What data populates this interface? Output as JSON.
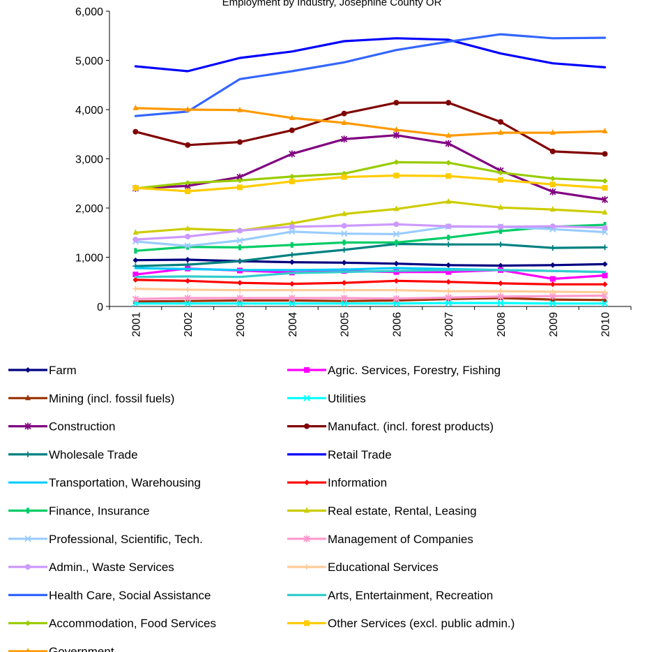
{
  "chart_data": {
    "type": "line",
    "title": "Employment by Industry, Josephine County OR",
    "xlabel": "",
    "ylabel": "",
    "ylim": [
      0,
      6000
    ],
    "y_ticks": [
      0,
      1000,
      2000,
      3000,
      4000,
      5000,
      6000
    ],
    "y_tick_labels": [
      "0",
      "1,000",
      "2,000",
      "3,000",
      "4,000",
      "5,000",
      "6,000"
    ],
    "grid": false,
    "legend_position": "bottom",
    "categories": [
      "2001",
      "2002",
      "2003",
      "2004",
      "2005",
      "2006",
      "2007",
      "2008",
      "2009",
      "2010"
    ],
    "series": [
      {
        "name": "Farm",
        "color": "#000080",
        "marker": "diamond",
        "values": [
          940,
          950,
          920,
          900,
          890,
          870,
          840,
          830,
          840,
          860
        ]
      },
      {
        "name": "Agric. Services, Forestry, Fishing",
        "color": "#FF00FF",
        "marker": "square",
        "values": [
          650,
          770,
          730,
          690,
          720,
          700,
          700,
          740,
          560,
          630
        ]
      },
      {
        "name": "Mining (incl. fossil fuels)",
        "color": "#993300",
        "marker": "triangle",
        "values": [
          100,
          110,
          120,
          120,
          110,
          120,
          150,
          170,
          140,
          130
        ]
      },
      {
        "name": "Utilities",
        "color": "#00FFFF",
        "marker": "x",
        "values": [
          60,
          60,
          60,
          60,
          60,
          60,
          70,
          70,
          60,
          60
        ]
      },
      {
        "name": "Construction",
        "color": "#800080",
        "marker": "star",
        "values": [
          2400,
          2450,
          2630,
          3100,
          3400,
          3480,
          3310,
          2760,
          2330,
          2170
        ]
      },
      {
        "name": "Manufact. (incl. forest products)",
        "color": "#800000",
        "marker": "circle",
        "values": [
          3550,
          3280,
          3340,
          3580,
          3920,
          4140,
          4140,
          3750,
          3150,
          3100
        ]
      },
      {
        "name": "Wholesale Trade",
        "color": "#008080",
        "marker": "plus",
        "values": [
          820,
          850,
          920,
          1050,
          1150,
          1270,
          1260,
          1260,
          1190,
          1200
        ]
      },
      {
        "name": "Retail Trade",
        "color": "#0000FF",
        "marker": "none",
        "values": [
          4880,
          4780,
          5050,
          5180,
          5390,
          5450,
          5420,
          5140,
          4940,
          4860
        ]
      },
      {
        "name": "Transportation, Warehousing",
        "color": "#00CCFF",
        "marker": "none",
        "values": [
          780,
          760,
          740,
          740,
          750,
          780,
          760,
          740,
          720,
          700
        ]
      },
      {
        "name": "Information",
        "color": "#FF0000",
        "marker": "diamond",
        "values": [
          540,
          520,
          480,
          460,
          480,
          520,
          500,
          470,
          450,
          450
        ]
      },
      {
        "name": "Finance, Insurance",
        "color": "#00CC66",
        "marker": "dash",
        "values": [
          1130,
          1210,
          1200,
          1250,
          1300,
          1300,
          1400,
          1530,
          1620,
          1660
        ]
      },
      {
        "name": "Real estate, Rental, Leasing",
        "color": "#CCCC00",
        "marker": "triangle",
        "values": [
          1500,
          1580,
          1540,
          1690,
          1880,
          1980,
          2130,
          2010,
          1970,
          1910
        ]
      },
      {
        "name": "Professional, Scientific, Tech.",
        "color": "#99CCFF",
        "marker": "x",
        "values": [
          1320,
          1230,
          1340,
          1520,
          1480,
          1470,
          1620,
          1620,
          1570,
          1510
        ]
      },
      {
        "name": "Management of Companies",
        "color": "#FF99CC",
        "marker": "star",
        "values": [
          150,
          170,
          170,
          170,
          170,
          160,
          180,
          200,
          210,
          220
        ]
      },
      {
        "name": "Admin., Waste Services",
        "color": "#CC99FF",
        "marker": "circle",
        "values": [
          1360,
          1420,
          1540,
          1620,
          1640,
          1670,
          1630,
          1620,
          1630,
          1600
        ]
      },
      {
        "name": "Educational Services",
        "color": "#FFCC99",
        "marker": "plus",
        "values": [
          360,
          340,
          330,
          330,
          330,
          330,
          310,
          310,
          300,
          290
        ]
      },
      {
        "name": "Health Care, Social Assistance",
        "color": "#3366FF",
        "marker": "none",
        "values": [
          3870,
          3960,
          4620,
          4780,
          4960,
          5210,
          5380,
          5530,
          5450,
          5460
        ]
      },
      {
        "name": "Arts, Entertainment, Recreation",
        "color": "#33CCCC",
        "marker": "none",
        "values": [
          600,
          610,
          600,
          680,
          700,
          720,
          740,
          740,
          720,
          700
        ]
      },
      {
        "name": "Accommodation, Food Services",
        "color": "#99CC00",
        "marker": "diamond",
        "values": [
          2400,
          2510,
          2560,
          2640,
          2700,
          2930,
          2920,
          2720,
          2600,
          2550
        ]
      },
      {
        "name": "Other Services (excl. public admin.)",
        "color": "#FFCC00",
        "marker": "square",
        "values": [
          2410,
          2340,
          2420,
          2540,
          2630,
          2660,
          2650,
          2570,
          2480,
          2410
        ]
      },
      {
        "name": "Government",
        "color": "#FF9900",
        "marker": "triangle",
        "values": [
          4030,
          4000,
          3990,
          3830,
          3730,
          3590,
          3470,
          3530,
          3530,
          3560
        ]
      }
    ]
  }
}
